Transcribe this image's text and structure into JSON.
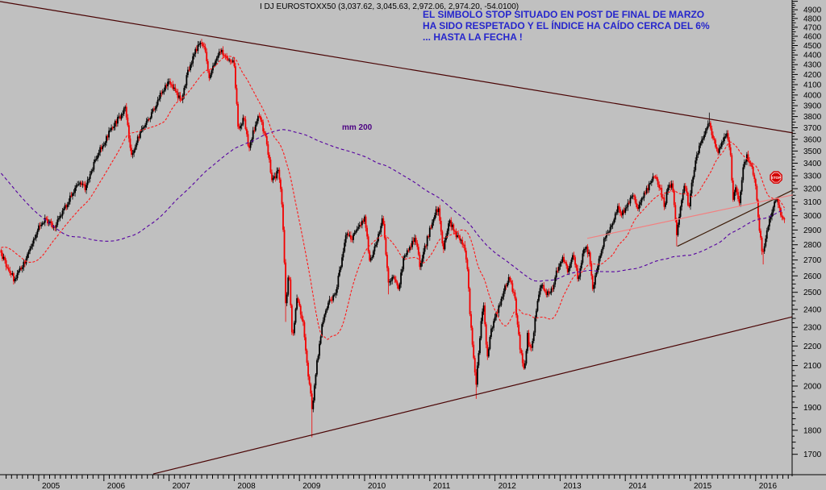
{
  "title": "I DJ EUROSTOXX50 (3,037.62, 3,045.63, 2,972.06, 2,974.20, -54.0100)",
  "annotation": {
    "color": "#2626cc",
    "lines": [
      "EL SIMBOLO STOP SITUADO EN POST DE FINAL DE MARZO",
      "HA SIDO RESPETADO Y EL ÍNDICE HA CAÍDO CERCA DEL 6%",
      "... HASTA LA FECHA !"
    ]
  },
  "ma_label": {
    "text": "mm 200",
    "color": "#4b0082"
  },
  "colors": {
    "background": "#c0c0c0",
    "candle_up": "#000000",
    "candle_down": "#f20000",
    "axis": "#000000"
  },
  "y_axis": {
    "labels": [
      4900,
      4800,
      4700,
      4600,
      4500,
      4400,
      4300,
      4200,
      4100,
      4000,
      3900,
      3800,
      3700,
      3600,
      3500,
      3400,
      3300,
      3200,
      3100,
      3000,
      2900,
      2800,
      2700,
      2600,
      2500,
      2400,
      2300,
      2200,
      2100,
      2000,
      1900,
      1800,
      1700
    ],
    "minor_step": 25
  },
  "x_axis": {
    "labels": [
      "2005",
      "2006",
      "2007",
      "2008",
      "2009",
      "2010",
      "2011",
      "2012",
      "2013",
      "2014",
      "2015",
      "2016"
    ]
  },
  "chart_data": {
    "type": "candlestick",
    "symbol": "DJ EUROSTOXX50",
    "timeframe": "weekly",
    "log_scale": true,
    "last_quote": {
      "open": 3037.62,
      "high": 3045.63,
      "low": 2972.06,
      "close": 2974.2,
      "change": -54.01
    },
    "visible_range": {
      "t_start": 2004.42,
      "t_end": 2016.45,
      "price_min": 1700,
      "price_max": 4900
    },
    "anchors": [
      [
        2000.5,
        5100
      ],
      [
        2000.75,
        4900
      ],
      [
        2001.0,
        4700
      ],
      [
        2001.2,
        4400
      ],
      [
        2001.5,
        4250
      ],
      [
        2001.71,
        3250
      ],
      [
        2001.9,
        3700
      ],
      [
        2002.2,
        3680
      ],
      [
        2002.45,
        3300
      ],
      [
        2002.6,
        2950
      ],
      [
        2002.75,
        2420
      ],
      [
        2002.9,
        2650
      ],
      [
        2003.2,
        2050
      ],
      [
        2003.45,
        2430
      ],
      [
        2003.7,
        2520
      ],
      [
        2003.95,
        2730
      ],
      [
        2004.2,
        2870
      ],
      [
        2004.35,
        2770
      ],
      [
        2004.42,
        2740
      ],
      [
        2004.62,
        2580
      ],
      [
        2004.8,
        2700
      ],
      [
        2005.0,
        2930
      ],
      [
        2005.1,
        2980
      ],
      [
        2005.25,
        2920
      ],
      [
        2005.45,
        3100
      ],
      [
        2005.6,
        3250
      ],
      [
        2005.72,
        3200
      ],
      [
        2005.8,
        3330
      ],
      [
        2005.95,
        3520
      ],
      [
        2006.1,
        3680
      ],
      [
        2006.33,
        3870
      ],
      [
        2006.42,
        3470
      ],
      [
        2006.55,
        3650
      ],
      [
        2006.7,
        3780
      ],
      [
        2006.9,
        4050
      ],
      [
        2007.0,
        4140
      ],
      [
        2007.18,
        3940
      ],
      [
        2007.3,
        4250
      ],
      [
        2007.45,
        4520
      ],
      [
        2007.54,
        4480
      ],
      [
        2007.62,
        4150
      ],
      [
        2007.7,
        4330
      ],
      [
        2007.78,
        4450
      ],
      [
        2007.9,
        4380
      ],
      [
        2008.0,
        4300
      ],
      [
        2008.06,
        3680
      ],
      [
        2008.15,
        3790
      ],
      [
        2008.22,
        3530
      ],
      [
        2008.38,
        3830
      ],
      [
        2008.5,
        3560
      ],
      [
        2008.58,
        3270
      ],
      [
        2008.68,
        3330
      ],
      [
        2008.74,
        3050
      ],
      [
        2008.79,
        2430
      ],
      [
        2008.84,
        2630
      ],
      [
        2008.89,
        2220
      ],
      [
        2008.96,
        2480
      ],
      [
        2009.05,
        2340
      ],
      [
        2009.12,
        2100
      ],
      [
        2009.2,
        1880
      ],
      [
        2009.25,
        2070
      ],
      [
        2009.35,
        2320
      ],
      [
        2009.45,
        2450
      ],
      [
        2009.55,
        2480
      ],
      [
        2009.65,
        2710
      ],
      [
        2009.72,
        2870
      ],
      [
        2009.8,
        2830
      ],
      [
        2009.9,
        2920
      ],
      [
        2010.0,
        2990
      ],
      [
        2010.08,
        2680
      ],
      [
        2010.2,
        2850
      ],
      [
        2010.28,
        2980
      ],
      [
        2010.37,
        2540
      ],
      [
        2010.45,
        2600
      ],
      [
        2010.52,
        2510
      ],
      [
        2010.6,
        2720
      ],
      [
        2010.68,
        2780
      ],
      [
        2010.78,
        2850
      ],
      [
        2010.85,
        2660
      ],
      [
        2010.95,
        2820
      ],
      [
        2011.05,
        2980
      ],
      [
        2011.13,
        3060
      ],
      [
        2011.2,
        2760
      ],
      [
        2011.3,
        2960
      ],
      [
        2011.4,
        2870
      ],
      [
        2011.5,
        2820
      ],
      [
        2011.57,
        2700
      ],
      [
        2011.62,
        2350
      ],
      [
        2011.71,
        2010
      ],
      [
        2011.78,
        2300
      ],
      [
        2011.82,
        2450
      ],
      [
        2011.88,
        2140
      ],
      [
        2011.95,
        2300
      ],
      [
        2012.05,
        2400
      ],
      [
        2012.16,
        2540
      ],
      [
        2012.22,
        2580
      ],
      [
        2012.3,
        2480
      ],
      [
        2012.38,
        2200
      ],
      [
        2012.45,
        2080
      ],
      [
        2012.5,
        2260
      ],
      [
        2012.55,
        2160
      ],
      [
        2012.65,
        2440
      ],
      [
        2012.7,
        2560
      ],
      [
        2012.8,
        2490
      ],
      [
        2012.88,
        2520
      ],
      [
        2012.95,
        2640
      ],
      [
        2013.05,
        2710
      ],
      [
        2013.12,
        2620
      ],
      [
        2013.2,
        2730
      ],
      [
        2013.28,
        2570
      ],
      [
        2013.37,
        2790
      ],
      [
        2013.45,
        2740
      ],
      [
        2013.5,
        2520
      ],
      [
        2013.6,
        2700
      ],
      [
        2013.7,
        2870
      ],
      [
        2013.78,
        2920
      ],
      [
        2013.88,
        3060
      ],
      [
        2013.95,
        3010
      ],
      [
        2014.05,
        3090
      ],
      [
        2014.12,
        3150
      ],
      [
        2014.2,
        3050
      ],
      [
        2014.3,
        3170
      ],
      [
        2014.45,
        3300
      ],
      [
        2014.55,
        3170
      ],
      [
        2014.6,
        3070
      ],
      [
        2014.65,
        3200
      ],
      [
        2014.72,
        3250
      ],
      [
        2014.79,
        2870
      ],
      [
        2014.85,
        3100
      ],
      [
        2014.92,
        3230
      ],
      [
        2014.97,
        3050
      ],
      [
        2015.05,
        3350
      ],
      [
        2015.15,
        3570
      ],
      [
        2015.28,
        3740
      ],
      [
        2015.35,
        3620
      ],
      [
        2015.42,
        3480
      ],
      [
        2015.5,
        3600
      ],
      [
        2015.56,
        3670
      ],
      [
        2015.62,
        3450
      ],
      [
        2015.65,
        3090
      ],
      [
        2015.7,
        3240
      ],
      [
        2015.74,
        3060
      ],
      [
        2015.8,
        3340
      ],
      [
        2015.86,
        3460
      ],
      [
        2015.92,
        3410
      ],
      [
        2016.0,
        3220
      ],
      [
        2016.05,
        2940
      ],
      [
        2016.11,
        2720
      ],
      [
        2016.16,
        2880
      ],
      [
        2016.2,
        2940
      ],
      [
        2016.27,
        3060
      ],
      [
        2016.32,
        3120
      ],
      [
        2016.37,
        3040
      ],
      [
        2016.42,
        2974.2
      ]
    ],
    "spikes": [
      {
        "t": 2007.5,
        "high": 4572
      },
      {
        "t": 2008.79,
        "low": 2330
      },
      {
        "t": 2009.2,
        "low": 1770
      },
      {
        "t": 2010.37,
        "low": 2488
      },
      {
        "t": 2011.71,
        "low": 1940
      },
      {
        "t": 2014.79,
        "low": 2790
      },
      {
        "t": 2015.28,
        "high": 3836
      },
      {
        "t": 2016.11,
        "low": 2672
      }
    ],
    "moving_averages": [
      {
        "name": "mm 30",
        "window": 30,
        "color": "#ff1a1a",
        "dash": "3,2"
      },
      {
        "name": "mm 200",
        "window": 200,
        "color": "#5500a0",
        "dash": "4,3"
      }
    ],
    "trendlines": [
      {
        "name": "upper-channel",
        "color": "#4a0404",
        "points": [
          [
            2004.406,
            4997
          ],
          [
            2016.57,
            3655
          ]
        ]
      },
      {
        "name": "lower-channel",
        "color": "#4a0404",
        "points": [
          [
            2006.757,
            1622
          ],
          [
            2016.56,
            2358
          ]
        ]
      },
      {
        "name": "black-rising",
        "color": "#3d1c08",
        "points": [
          [
            2014.8,
            2790
          ],
          [
            2016.57,
            3190
          ]
        ]
      },
      {
        "name": "pink-support",
        "color": "#f28080",
        "points": [
          [
            2013.416,
            2843
          ],
          [
            2016.57,
            3153
          ]
        ]
      }
    ],
    "stop_sign": {
      "label": "STOP",
      "t": 2016.313,
      "price": 3287,
      "fill": "#d40000",
      "text_color": "#ffffff"
    }
  }
}
